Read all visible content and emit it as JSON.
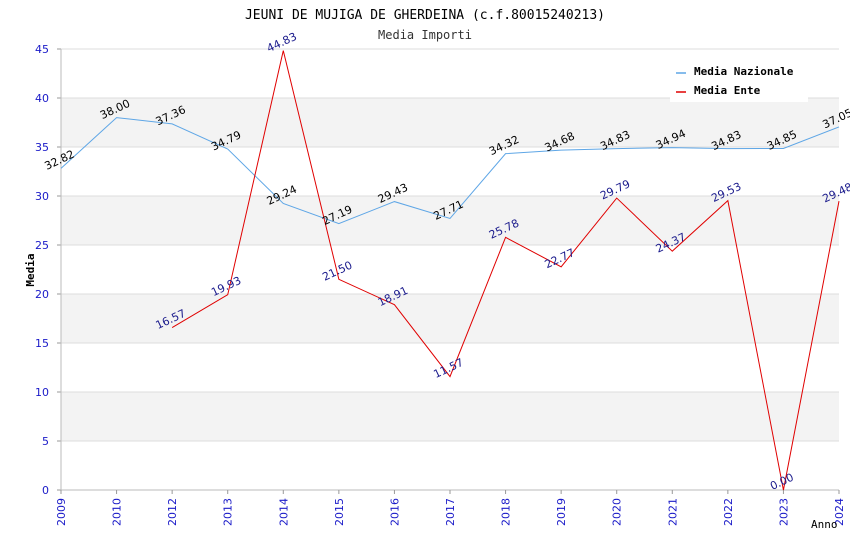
{
  "chart_data": {
    "type": "line",
    "title": "JEUNI DE MUJIGA DE GHERDEINA (c.f.80015240213)",
    "subtitle": "Media Importi",
    "ylabel": "Media",
    "xlabel": "Anno",
    "ylim": [
      0,
      45
    ],
    "y_ticks": [
      "0",
      "5",
      "10",
      "15",
      "20",
      "25",
      "30",
      "35",
      "40",
      "45"
    ],
    "categories": [
      "2009",
      "2010",
      "2012",
      "2013",
      "2014",
      "2015",
      "2016",
      "2017",
      "2018",
      "2019",
      "2020",
      "2021",
      "2022",
      "2023",
      "2024"
    ],
    "series": [
      {
        "name": "Media Nazionale",
        "color": "#5ea6e6",
        "label_color": "#000000",
        "values": [
          32.82,
          38.0,
          37.36,
          34.79,
          29.24,
          27.19,
          29.43,
          27.71,
          34.32,
          34.68,
          34.83,
          34.94,
          34.83,
          34.85,
          37.05
        ],
        "labels": [
          "32.82",
          "38.00",
          "37.36",
          "34.79",
          "29.24",
          "27.19",
          "29.43",
          "27.71",
          "34.32",
          "34.68",
          "34.83",
          "34.94",
          "34.83",
          "34.85",
          "37.05"
        ]
      },
      {
        "name": "Media Ente",
        "color": "#e00000",
        "label_color": "#1a1a8c",
        "values": [
          null,
          null,
          16.57,
          19.93,
          44.83,
          21.5,
          18.91,
          11.57,
          25.78,
          22.77,
          29.79,
          24.37,
          29.53,
          0.0,
          29.48
        ],
        "labels": [
          null,
          null,
          "16.57",
          "19.93",
          "44.83",
          "21.50",
          "18.91",
          "11.57",
          "25.78",
          "22.77",
          "29.79",
          "24.37",
          "29.53",
          "0.00",
          "29.48"
        ]
      }
    ],
    "legend_position": "top-right",
    "grid": true
  }
}
